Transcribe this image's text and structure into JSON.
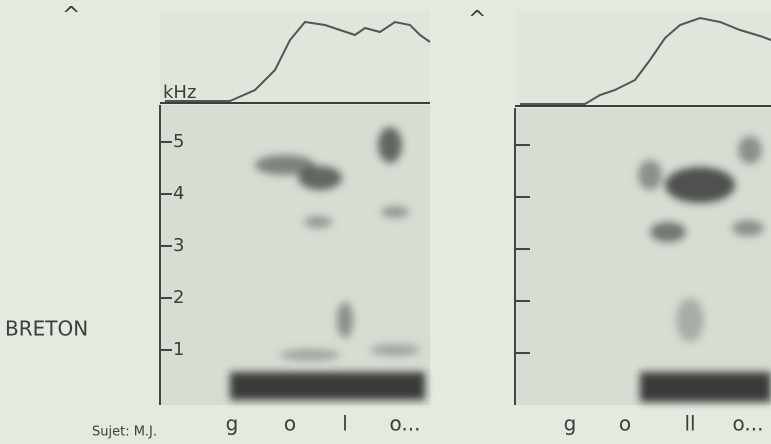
{
  "unit": "kHz",
  "ticks": [
    5,
    4,
    3,
    2,
    1
  ],
  "language": "BRETON",
  "subject": "Sujet: M.J.",
  "left_panel": {
    "segments": [
      "g",
      "o",
      "l",
      "o..."
    ]
  },
  "right_panel": {
    "segments": [
      "g",
      "o",
      "ll",
      "o..."
    ]
  },
  "marks": [
    "^",
    "^"
  ]
}
